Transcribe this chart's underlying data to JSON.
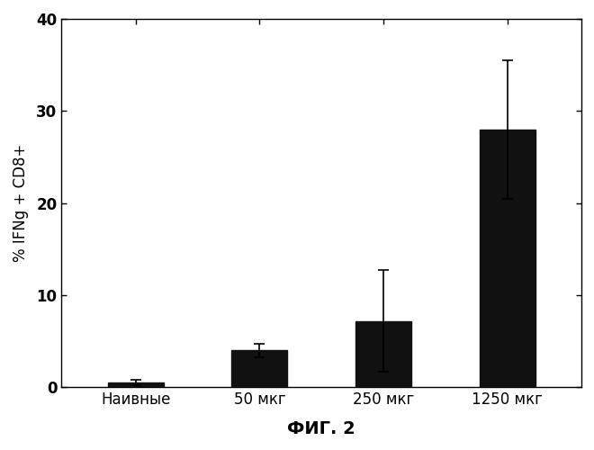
{
  "categories": [
    "Наивные",
    "50 мкг",
    "250 мкг",
    "1250 мкг"
  ],
  "values": [
    0.5,
    4.0,
    7.2,
    28.0
  ],
  "errors": [
    0.3,
    0.7,
    5.5,
    7.5
  ],
  "bar_color": "#111111",
  "bar_width": 0.45,
  "ylim": [
    0,
    40
  ],
  "yticks": [
    0,
    10,
    20,
    30,
    40
  ],
  "ylabel": "% IFNg + CD8+",
  "xlabel": "ФИГ. 2",
  "background_color": "#ffffff",
  "figsize": [
    6.6,
    5.0
  ],
  "dpi": 100
}
